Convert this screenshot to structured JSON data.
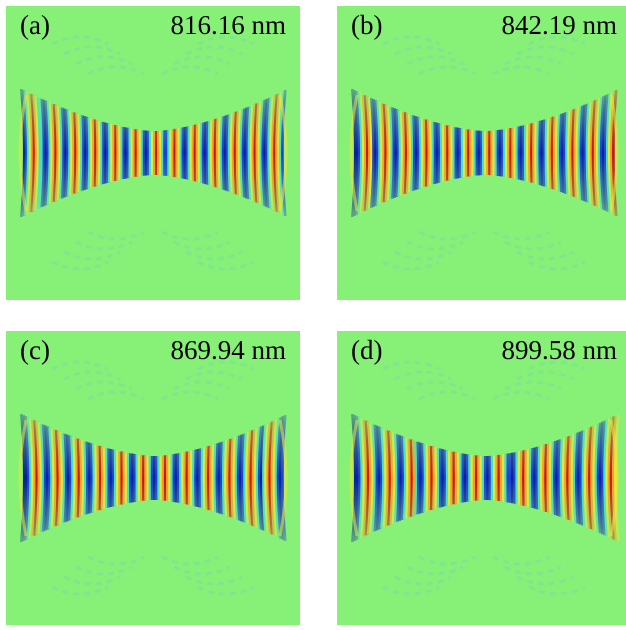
{
  "figure": {
    "panels": [
      {
        "label": "(a)",
        "wavelength": "816.16 nm",
        "fringes": 13.0
      },
      {
        "label": "(b)",
        "wavelength": "842.19 nm",
        "fringes": 12.6
      },
      {
        "label": "(c)",
        "wavelength": "869.94 nm",
        "fringes": 12.2
      },
      {
        "label": "(d)",
        "wavelength": "899.58 nm",
        "fringes": 11.8
      }
    ],
    "colors": {
      "background": "#87f077",
      "red": "#c8101a",
      "orange": "#f4a01c",
      "yellow": "#f2e43a",
      "cyan": "#3ce0c8",
      "blue": "#1e3cd0",
      "dark_blue": "#0a1e9a"
    }
  }
}
